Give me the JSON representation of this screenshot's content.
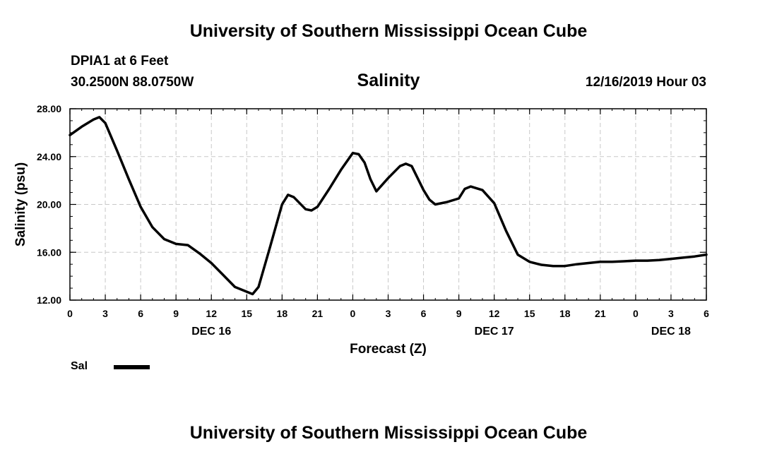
{
  "header": {
    "title": "University of Southern Mississippi Ocean Cube",
    "station": "DPIA1 at 6 Feet",
    "coordinates": "30.2500N 88.0750W",
    "variable": "Salinity",
    "timestamp": "12/16/2019 Hour 03"
  },
  "footer": {
    "title": "University of Southern Mississippi Ocean Cube"
  },
  "legend": {
    "label": "Sal"
  },
  "chart_data": {
    "type": "line",
    "title": "Salinity",
    "xlabel": "Forecast (Z)",
    "ylabel": "Salinity (psu)",
    "xlim": [
      0,
      54
    ],
    "ylim": [
      12,
      28
    ],
    "grid": true,
    "x_tick_values": [
      0,
      3,
      6,
      9,
      12,
      15,
      18,
      21,
      24,
      27,
      30,
      33,
      36,
      39,
      42,
      45,
      48,
      51,
      54
    ],
    "x_tick_labels": [
      "0",
      "3",
      "6",
      "9",
      "12",
      "15",
      "18",
      "21",
      "0",
      "3",
      "6",
      "9",
      "12",
      "15",
      "18",
      "21",
      "0",
      "3",
      "6"
    ],
    "y_tick_values": [
      12,
      16,
      20,
      24,
      28
    ],
    "y_tick_labels": [
      "12.00",
      "16.00",
      "20.00",
      "24.00",
      "28.00"
    ],
    "day_labels": [
      {
        "label": "DEC 16",
        "x": 12
      },
      {
        "label": "DEC 17",
        "x": 36
      },
      {
        "label": "DEC 18",
        "x": 51
      }
    ],
    "line_color": "#000000",
    "series": [
      {
        "name": "Sal",
        "x": [
          0,
          1,
          2,
          2.5,
          3,
          4,
          5,
          6,
          7,
          8,
          9,
          10,
          11,
          12,
          13,
          14,
          15,
          15.5,
          16,
          17,
          18,
          18.5,
          19,
          20,
          20.5,
          21,
          22,
          23,
          24,
          24.5,
          25,
          25.5,
          26,
          27,
          28,
          28.5,
          29,
          30,
          30.5,
          31,
          32,
          33,
          33.5,
          34,
          35,
          36,
          37,
          38,
          39,
          40,
          41,
          42,
          43,
          44,
          45,
          46,
          47,
          48,
          49,
          50,
          51,
          52,
          53,
          54
        ],
        "values": [
          25.8,
          26.5,
          27.1,
          27.3,
          26.8,
          24.5,
          22.1,
          19.8,
          18.1,
          17.1,
          16.7,
          16.6,
          15.9,
          15.1,
          14.1,
          13.1,
          12.7,
          12.5,
          13.1,
          16.5,
          20.0,
          20.8,
          20.6,
          19.6,
          19.5,
          19.8,
          21.3,
          22.9,
          24.3,
          24.2,
          23.5,
          22.1,
          21.1,
          22.2,
          23.2,
          23.4,
          23.2,
          21.2,
          20.4,
          20.0,
          20.2,
          20.5,
          21.3,
          21.5,
          21.2,
          20.1,
          17.8,
          15.8,
          15.2,
          14.95,
          14.85,
          14.85,
          15.0,
          15.1,
          15.2,
          15.2,
          15.25,
          15.3,
          15.3,
          15.35,
          15.45,
          15.55,
          15.65,
          15.8
        ]
      }
    ]
  }
}
